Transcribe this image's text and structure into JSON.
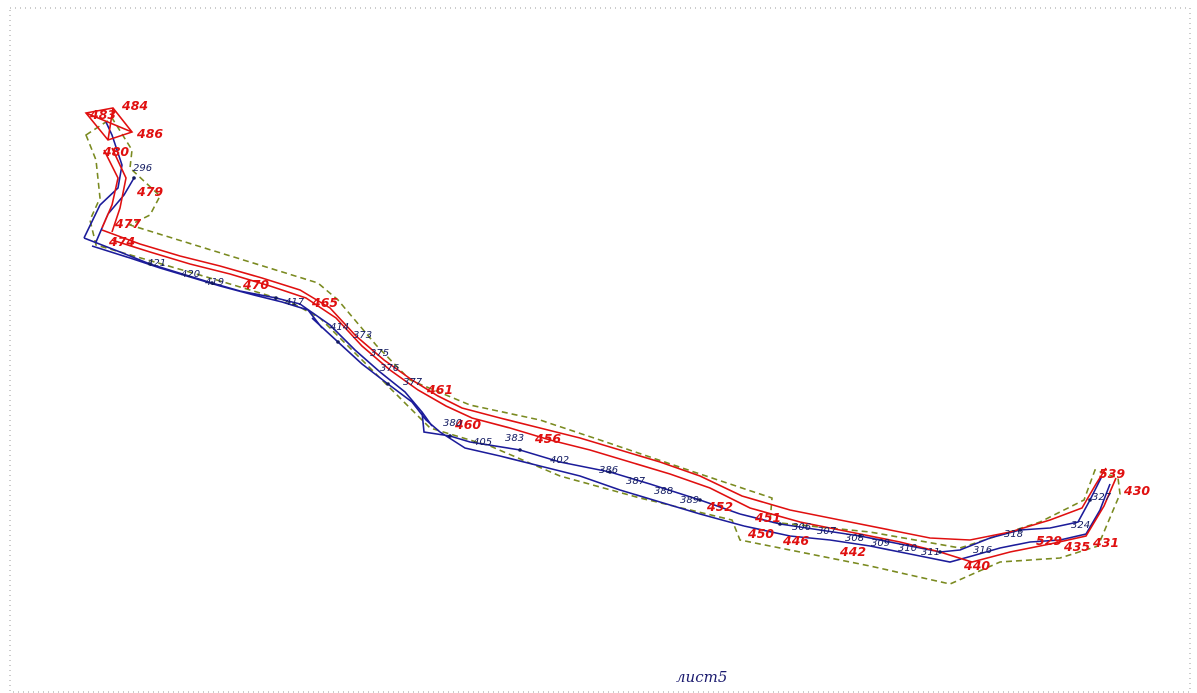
{
  "sheet_label": "лист5",
  "colors": {
    "boundary": "#e01010",
    "existing": "#1c1c9a",
    "zone": "#7a8a20",
    "sheet_frame": "#9a9a9a"
  },
  "red_points": [
    "483",
    "484",
    "486",
    "480",
    "479",
    "477",
    "474",
    "470",
    "465",
    "461",
    "460",
    "456",
    "452",
    "451",
    "450",
    "446",
    "442",
    "440",
    "529",
    "435",
    "431",
    "430",
    "539"
  ],
  "blue_points": [
    "296",
    "421",
    "420",
    "419",
    "417",
    "414",
    "373",
    "375",
    "376",
    "377",
    "380",
    "405",
    "383",
    "402",
    "386",
    "387",
    "388",
    "389",
    "306",
    "307",
    "308",
    "309",
    "310",
    "311",
    "316",
    "318",
    "324",
    "327"
  ]
}
